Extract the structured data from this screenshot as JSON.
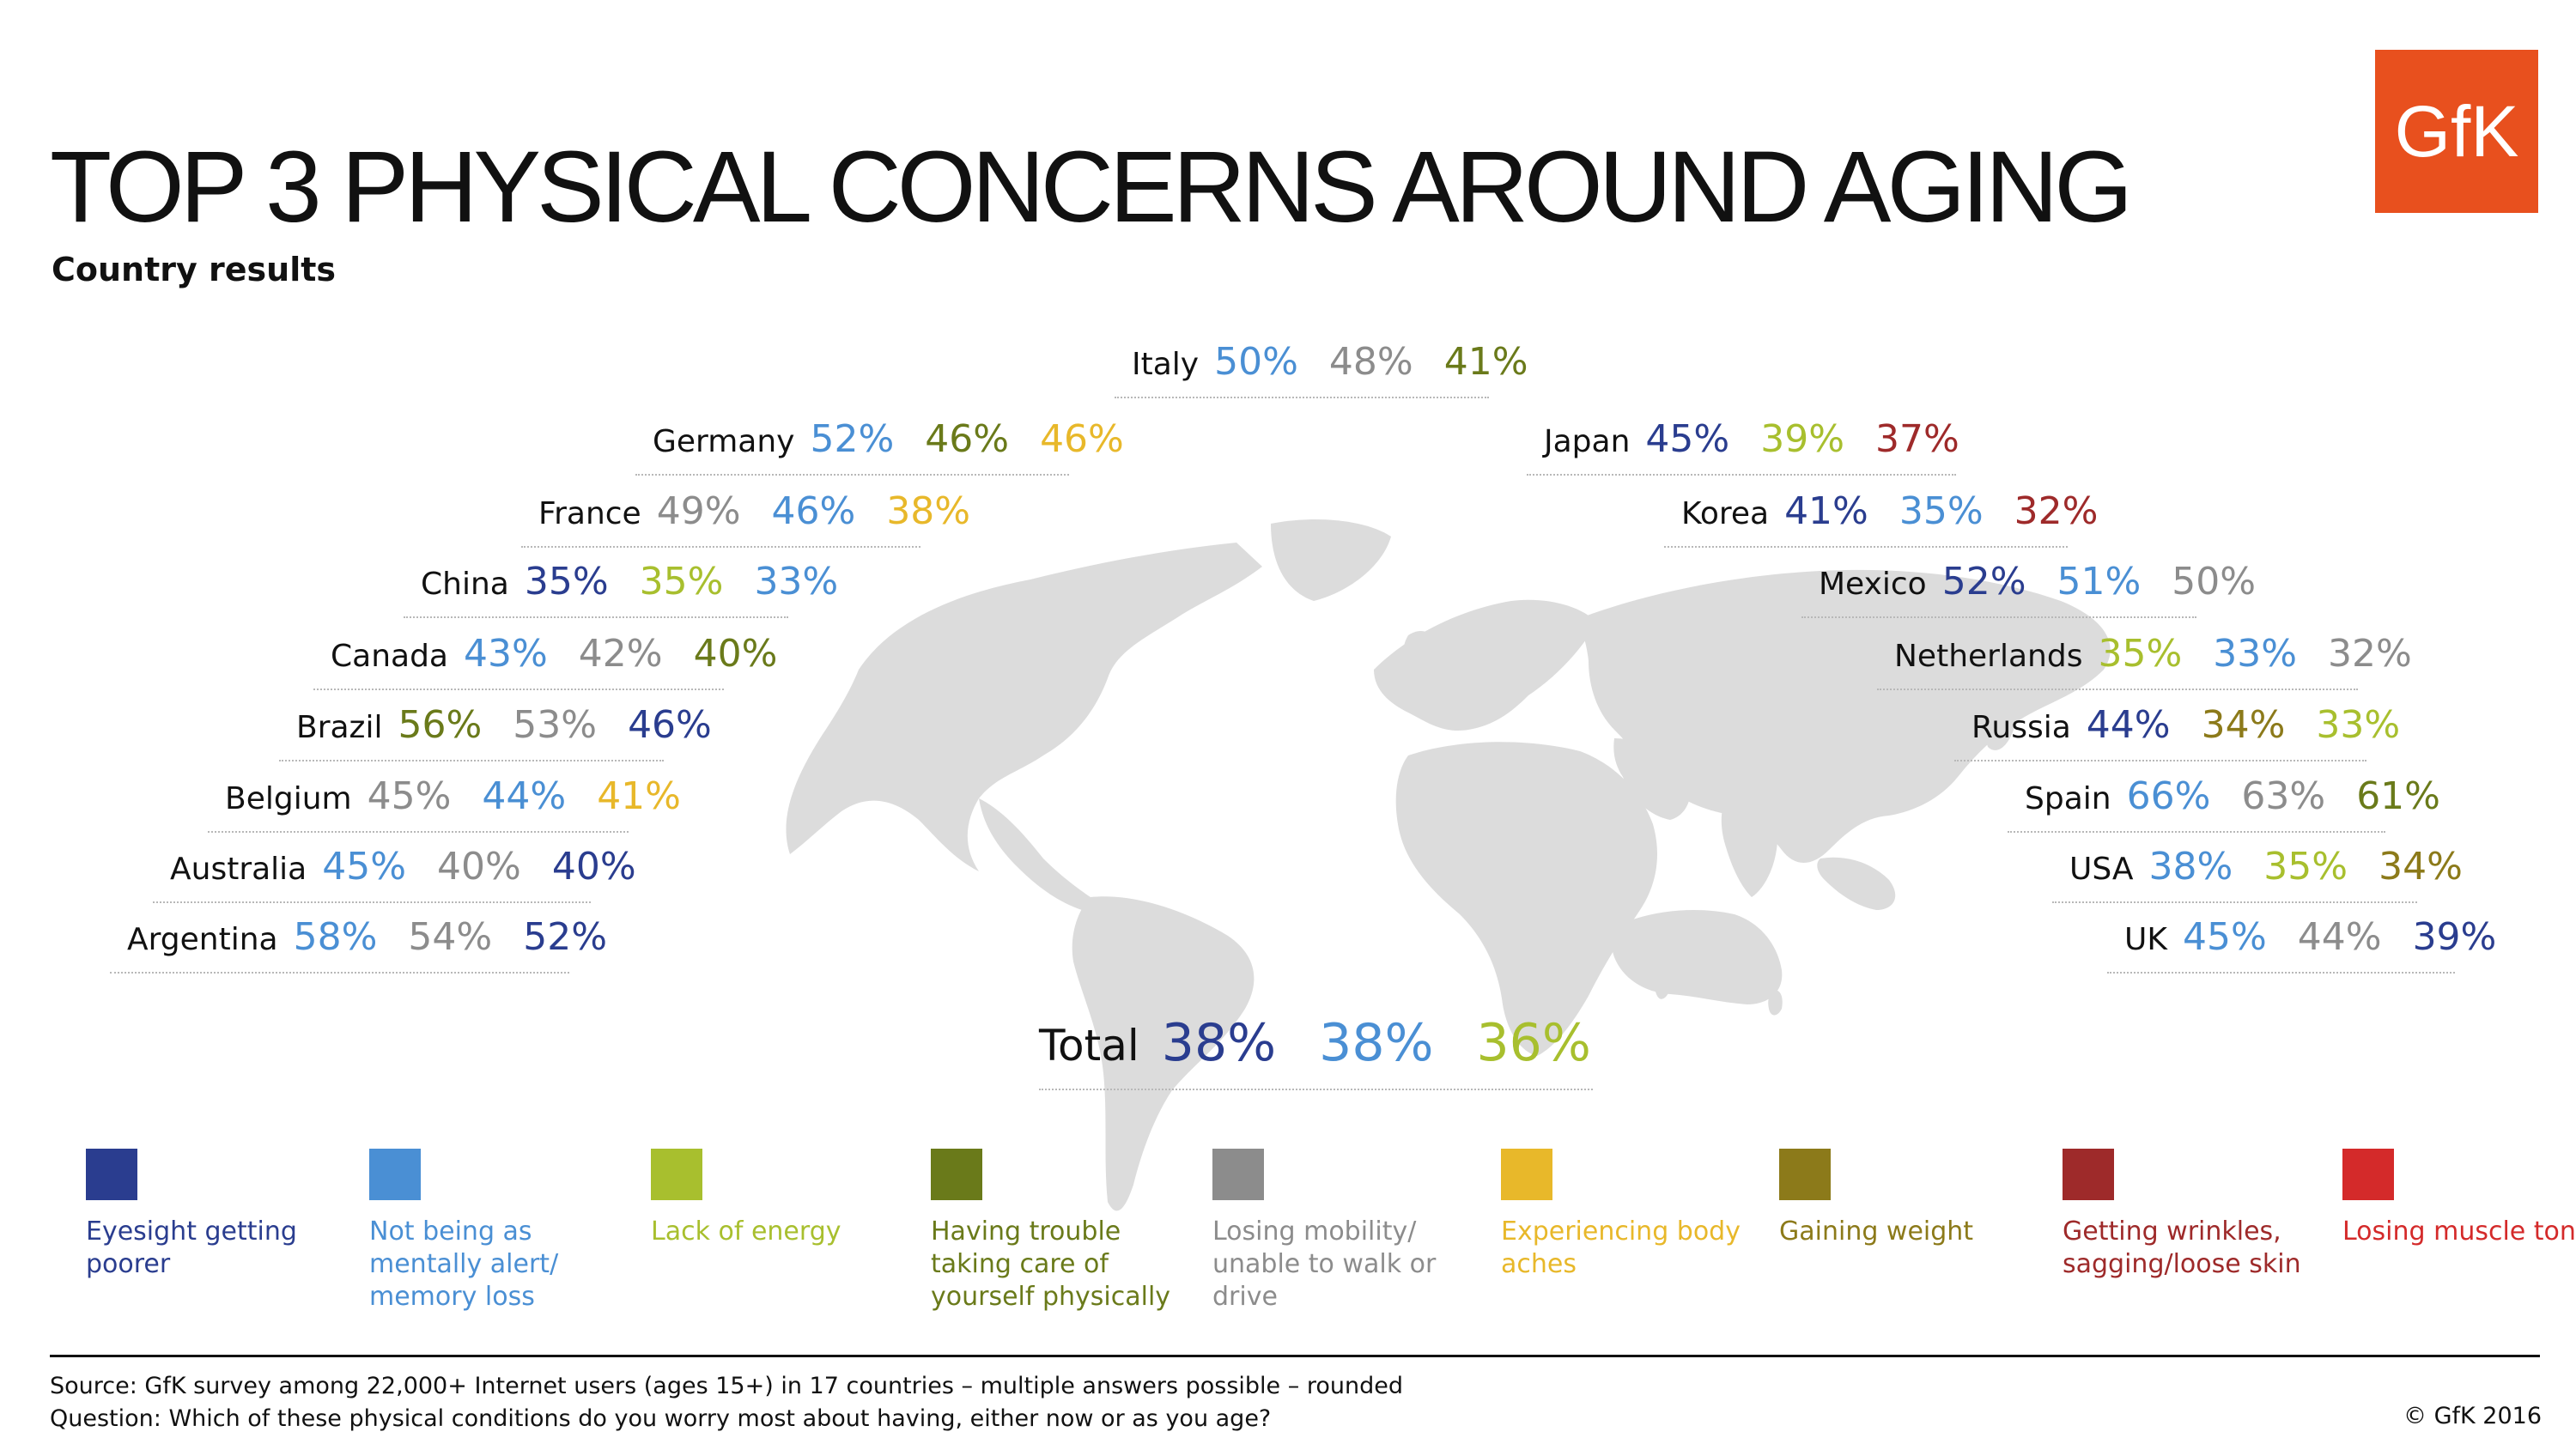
{
  "title": "TOP 3 PHYSICAL CONCERNS AROUND AGING",
  "subtitle": "Country results",
  "logo_text": "GfK",
  "footer": {
    "source": "Source: GfK survey among 22,000+ Internet users (ages 15+) in 17 countries – multiple answers possible – rounded",
    "question": "Question: Which of these physical conditions do you worry most about having, either now or as you age?",
    "copyright": "© GfK 2016"
  },
  "legend": [
    {
      "key": "eyesight",
      "label": "Eyesight getting poorer",
      "color": "#2a3d8f"
    },
    {
      "key": "alert",
      "label": "Not being as mentally alert/ memory loss",
      "color": "#4a8fd4"
    },
    {
      "key": "energy",
      "label": "Lack of energy",
      "color": "#a8bf2e"
    },
    {
      "key": "caretaking",
      "label": "Having trouble taking care of yourself physically",
      "color": "#6a7a1a"
    },
    {
      "key": "mobility",
      "label": "Losing mobility/ unable to walk or drive",
      "color": "#8c8c8c"
    },
    {
      "key": "aches",
      "label": "Experiencing body aches",
      "color": "#e8b82a"
    },
    {
      "key": "weight",
      "label": "Gaining weight",
      "color": "#8c7a1a"
    },
    {
      "key": "wrinkles",
      "label": "Getting wrinkles, sagging/loose skin",
      "color": "#9e2a2a"
    },
    {
      "key": "muscle",
      "label": "Losing muscle tone",
      "color": "#d42a2a"
    }
  ],
  "chart_data": {
    "type": "table",
    "title": "TOP 3 PHYSICAL CONCERNS AROUND AGING",
    "subtitle": "Country results",
    "unit": "%",
    "rows": [
      {
        "country": "Italy",
        "values": [
          {
            "v": 50,
            "k": "alert"
          },
          {
            "v": 48,
            "k": "mobility"
          },
          {
            "v": 41,
            "k": "caretaking"
          }
        ]
      },
      {
        "country": "Germany",
        "values": [
          {
            "v": 52,
            "k": "alert"
          },
          {
            "v": 46,
            "k": "caretaking"
          },
          {
            "v": 46,
            "k": "aches"
          }
        ]
      },
      {
        "country": "France",
        "values": [
          {
            "v": 49,
            "k": "mobility"
          },
          {
            "v": 46,
            "k": "alert"
          },
          {
            "v": 38,
            "k": "aches"
          }
        ]
      },
      {
        "country": "China",
        "values": [
          {
            "v": 35,
            "k": "eyesight"
          },
          {
            "v": 35,
            "k": "energy"
          },
          {
            "v": 33,
            "k": "alert"
          }
        ]
      },
      {
        "country": "Canada",
        "values": [
          {
            "v": 43,
            "k": "alert"
          },
          {
            "v": 42,
            "k": "mobility"
          },
          {
            "v": 40,
            "k": "caretaking"
          }
        ]
      },
      {
        "country": "Brazil",
        "values": [
          {
            "v": 56,
            "k": "caretaking"
          },
          {
            "v": 53,
            "k": "mobility"
          },
          {
            "v": 46,
            "k": "eyesight"
          }
        ]
      },
      {
        "country": "Belgium",
        "values": [
          {
            "v": 45,
            "k": "mobility"
          },
          {
            "v": 44,
            "k": "alert"
          },
          {
            "v": 41,
            "k": "aches"
          }
        ]
      },
      {
        "country": "Australia",
        "values": [
          {
            "v": 45,
            "k": "alert"
          },
          {
            "v": 40,
            "k": "mobility"
          },
          {
            "v": 40,
            "k": "eyesight"
          }
        ]
      },
      {
        "country": "Argentina",
        "values": [
          {
            "v": 58,
            "k": "alert"
          },
          {
            "v": 54,
            "k": "mobility"
          },
          {
            "v": 52,
            "k": "eyesight"
          }
        ]
      },
      {
        "country": "Japan",
        "values": [
          {
            "v": 45,
            "k": "eyesight"
          },
          {
            "v": 39,
            "k": "energy"
          },
          {
            "v": 37,
            "k": "wrinkles"
          }
        ]
      },
      {
        "country": "Korea",
        "values": [
          {
            "v": 41,
            "k": "eyesight"
          },
          {
            "v": 35,
            "k": "alert"
          },
          {
            "v": 32,
            "k": "wrinkles"
          }
        ]
      },
      {
        "country": "Mexico",
        "values": [
          {
            "v": 52,
            "k": "eyesight"
          },
          {
            "v": 51,
            "k": "alert"
          },
          {
            "v": 50,
            "k": "mobility"
          }
        ]
      },
      {
        "country": "Netherlands",
        "values": [
          {
            "v": 35,
            "k": "energy"
          },
          {
            "v": 33,
            "k": "alert"
          },
          {
            "v": 32,
            "k": "mobility"
          }
        ]
      },
      {
        "country": "Russia",
        "values": [
          {
            "v": 44,
            "k": "eyesight"
          },
          {
            "v": 34,
            "k": "weight"
          },
          {
            "v": 33,
            "k": "energy"
          }
        ]
      },
      {
        "country": "Spain",
        "values": [
          {
            "v": 66,
            "k": "alert"
          },
          {
            "v": 63,
            "k": "mobility"
          },
          {
            "v": 61,
            "k": "caretaking"
          }
        ]
      },
      {
        "country": "USA",
        "values": [
          {
            "v": 38,
            "k": "alert"
          },
          {
            "v": 35,
            "k": "energy"
          },
          {
            "v": 34,
            "k": "weight"
          }
        ]
      },
      {
        "country": "UK",
        "values": [
          {
            "v": 45,
            "k": "alert"
          },
          {
            "v": 44,
            "k": "mobility"
          },
          {
            "v": 39,
            "k": "eyesight"
          }
        ]
      }
    ],
    "total": {
      "country": "Total",
      "values": [
        {
          "v": 38,
          "k": "eyesight"
        },
        {
          "v": 38,
          "k": "alert"
        },
        {
          "v": 36,
          "k": "energy"
        }
      ]
    }
  }
}
